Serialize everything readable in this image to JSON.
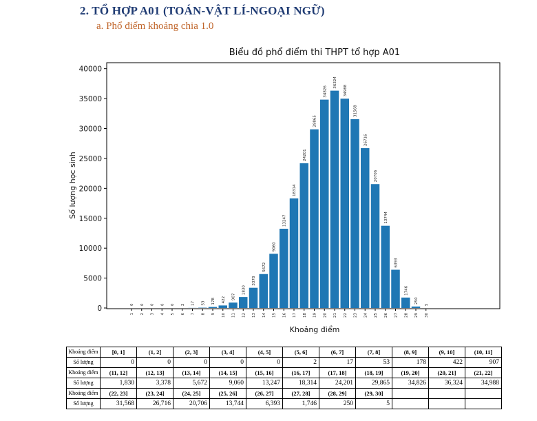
{
  "heading": "2.  TỔ HỢP A01 (TOÁN-VẬT LÍ-NGOẠI NGỮ)",
  "subheading": "a.  Phổ điểm khoảng chia 1.0",
  "chart_data": {
    "type": "bar",
    "title": "Biểu đồ phổ điểm thi THPT tổ hợp A01",
    "xlabel": "Khoảng điểm",
    "ylabel": "Số lượng học sinh",
    "ylim": [
      0,
      41000
    ],
    "yticks": [
      0,
      5000,
      10000,
      15000,
      20000,
      25000,
      30000,
      35000,
      40000
    ],
    "categories": [
      "1",
      "2",
      "3",
      "4",
      "5",
      "6",
      "7",
      "8",
      "9",
      "10",
      "11",
      "12",
      "13",
      "14",
      "15",
      "16",
      "17",
      "18",
      "19",
      "20",
      "21",
      "22",
      "23",
      "24",
      "25",
      "26",
      "27",
      "28",
      "29",
      "30"
    ],
    "values": [
      0,
      0,
      0,
      0,
      0,
      2,
      17,
      53,
      178,
      422,
      907,
      1830,
      3378,
      5672,
      9060,
      13247,
      18314,
      24201,
      29865,
      34826,
      36324,
      34988,
      31568,
      26716,
      20706,
      13744,
      6393,
      1746,
      250,
      5
    ],
    "bar_color": "#1f77b4"
  },
  "table": {
    "label_range": "Khoảng điểm",
    "label_count": "Số lượng",
    "blocks": [
      {
        "ranges": [
          "[0, 1]",
          "(1, 2]",
          "(2, 3]",
          "(3, 4]",
          "(4, 5]",
          "(5, 6]",
          "(6, 7]",
          "(7, 8]",
          "(8, 9]",
          "(9, 10]",
          "(10, 11]"
        ],
        "counts": [
          "0",
          "0",
          "0",
          "0",
          "0",
          "2",
          "17",
          "53",
          "178",
          "422",
          "907"
        ]
      },
      {
        "ranges": [
          "(11, 12]",
          "(12, 13]",
          "(13, 14]",
          "(14, 15]",
          "(15, 16]",
          "(16, 17]",
          "(17, 18]",
          "(18, 19]",
          "(19, 20]",
          "(20, 21]",
          "(21, 22]"
        ],
        "counts": [
          "1,830",
          "3,378",
          "5,672",
          "9,060",
          "13,247",
          "18,314",
          "24,201",
          "29,865",
          "34,826",
          "36,324",
          "34,988"
        ]
      },
      {
        "ranges": [
          "(22, 23]",
          "(23, 24]",
          "(24, 25]",
          "(25, 26]",
          "(26, 27]",
          "(27, 28]",
          "(28, 29]",
          "(29, 30]",
          "",
          "",
          ""
        ],
        "counts": [
          "31,568",
          "26,716",
          "20,706",
          "13,744",
          "6,393",
          "1,746",
          "250",
          "5",
          "",
          "",
          ""
        ]
      }
    ]
  }
}
